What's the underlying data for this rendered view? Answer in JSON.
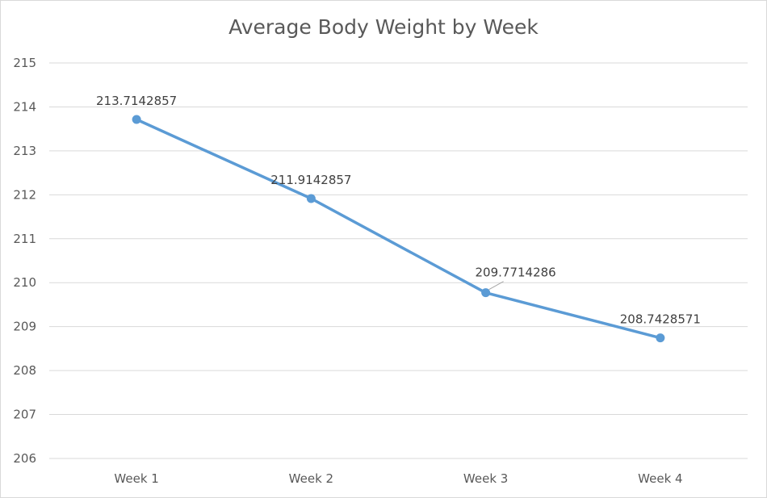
{
  "chart_data": {
    "type": "line",
    "title": "Average Body Weight by Week",
    "xlabel": "",
    "ylabel": "",
    "categories": [
      "Week 1",
      "Week 2",
      "Week 3",
      "Week 4"
    ],
    "series": [
      {
        "values": [
          213.7142857,
          211.9142857,
          209.7714286,
          208.7428571
        ],
        "data_labels": [
          "213.7142857",
          "211.9142857",
          "209.7714286",
          "208.7428571"
        ],
        "color": "#5b9bd5"
      }
    ],
    "ylim": [
      206,
      215
    ],
    "y_ticks": [
      "206",
      "207",
      "208",
      "209",
      "210",
      "211",
      "212",
      "213",
      "214",
      "215"
    ],
    "grid": true,
    "legend": "none",
    "colors": {
      "line": "#5b9bd5",
      "gridline": "#d9d9d9",
      "text": "#595959",
      "border": "#d9d9d9"
    }
  }
}
